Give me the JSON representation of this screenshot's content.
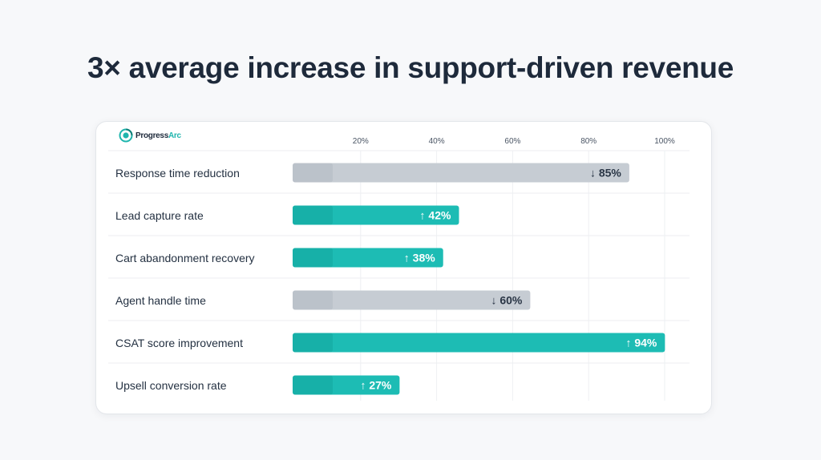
{
  "headline": "3× average increase in support-driven revenue",
  "brand": {
    "name_main": "Progress",
    "name_accent": "Arc"
  },
  "colors": {
    "increase": "#1dbcb4",
    "increase_dark": "#13a59e",
    "decrease": "#c6ccd3",
    "decrease_dark": "#b3bac3",
    "increase_text": "#ffffff",
    "decrease_text": "#2a3646"
  },
  "chart_data": {
    "type": "bar",
    "orientation": "horizontal",
    "title": "3× average increase in support-driven revenue",
    "xlabel": "",
    "ylabel": "",
    "xlim": [
      0,
      100
    ],
    "ticks": [
      20,
      40,
      60,
      80,
      100
    ],
    "tick_labels": [
      "20%",
      "40%",
      "60%",
      "80%",
      "100%"
    ],
    "grid": true,
    "categories": [
      "Response time reduction",
      "Lead capture rate",
      "Cart abandonment recovery",
      "Agent handle time",
      "CSAT score improvement",
      "Upsell conversion rate"
    ],
    "values": [
      85,
      42,
      38,
      60,
      94,
      27
    ],
    "directions": [
      "down",
      "up",
      "up",
      "down",
      "up",
      "up"
    ],
    "value_labels": [
      "↓ 85%",
      "↑ 42%",
      "↑ 38%",
      "↓ 60%",
      "↑ 94%",
      "↑ 27%"
    ]
  }
}
